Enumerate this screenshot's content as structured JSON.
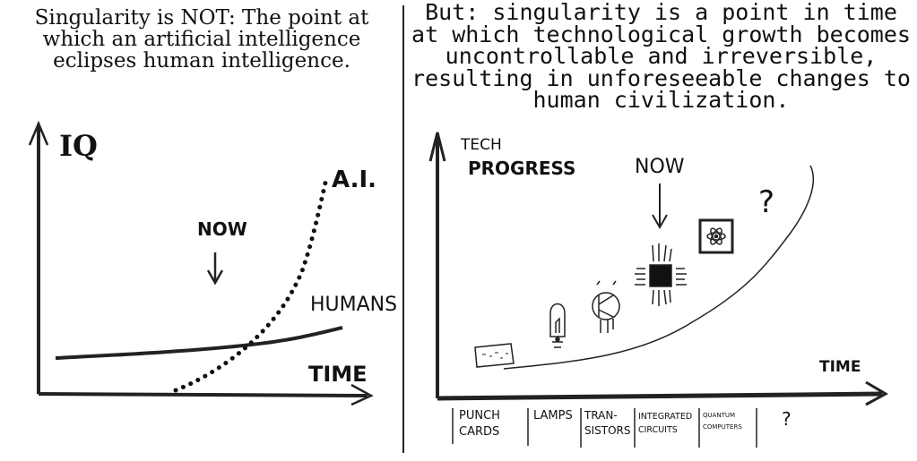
{
  "left_panel": {
    "caption": "Singularity is NOT: The point at which an artificial intelligence eclipses human intelligence.",
    "y_axis_label": "IQ",
    "x_axis_label": "TIME",
    "now_label": "NOW",
    "ai_label": "A.I.",
    "humans_label": "HUMANS"
  },
  "right_panel": {
    "caption": "But: singularity is a point in time at which technological growth becomes uncontrollable and irreversible, resulting in unforeseeable changes to human civilization.",
    "y_axis_label_line1": "TECH",
    "y_axis_label_line2": "PROGRESS",
    "x_axis_label": "TIME",
    "now_label": "NOW",
    "question_mark": "?",
    "eras": [
      {
        "line1": "PUNCH",
        "line2": "CARDS"
      },
      {
        "line1": "LAMPS",
        "line2": ""
      },
      {
        "line1": "TRAN-",
        "line2": "SISTORS"
      },
      {
        "line1": "INTEGRATED",
        "line2": "CIRCUITS"
      },
      {
        "line1": "QUANTUM",
        "line2": "COMPUTERS"
      },
      {
        "line1": "?",
        "line2": ""
      }
    ]
  },
  "icons": [
    "punch-card-icon",
    "lamp-icon",
    "transistor-icon",
    "chip-icon",
    "atom-icon",
    "question-icon"
  ]
}
